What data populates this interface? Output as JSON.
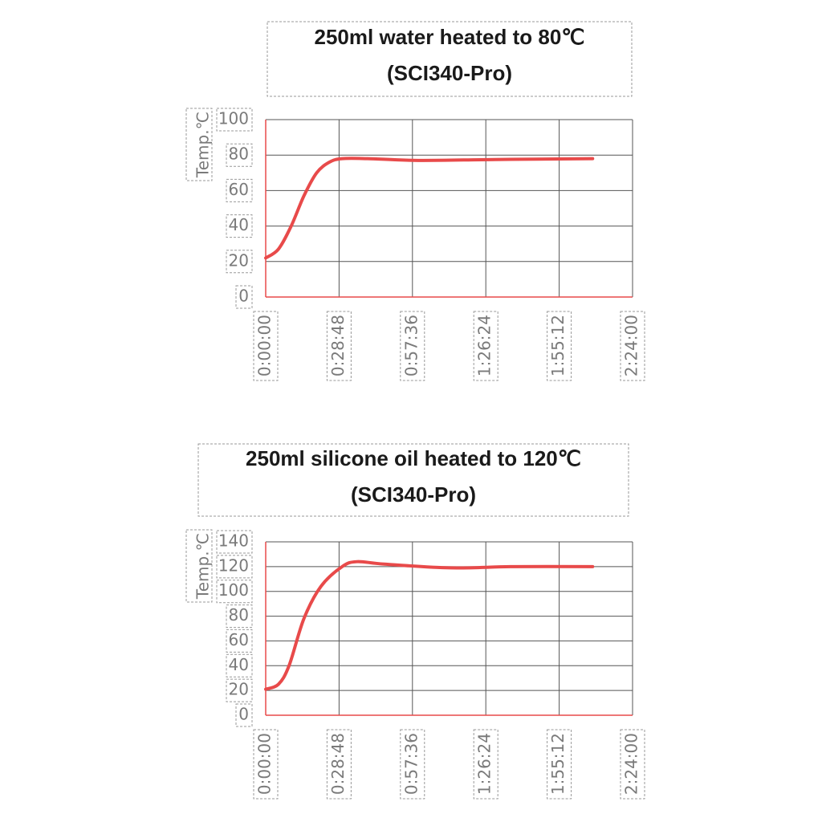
{
  "chart_data": [
    {
      "type": "line",
      "title": "250ml water heated to 80℃",
      "subtitle": "(SCI340-Pro)",
      "y_label": "Temp.℃",
      "x": [
        0,
        300,
        600,
        900,
        1200,
        1500,
        1800,
        2400,
        3600,
        5400,
        7700
      ],
      "series": [
        {
          "name": "Temp",
          "color": "#e84a4a",
          "values": [
            22,
            27,
            40,
            57,
            70,
            76,
            78,
            78,
            77,
            77.5,
            78
          ]
        }
      ],
      "xlim": [
        0,
        8640
      ],
      "xticks": [
        {
          "value": 0,
          "label": "0:00:00"
        },
        {
          "value": 1728,
          "label": "0:28:48"
        },
        {
          "value": 3456,
          "label": "0:57:36"
        },
        {
          "value": 5184,
          "label": "1:26:24"
        },
        {
          "value": 6912,
          "label": "1:55:12"
        },
        {
          "value": 8640,
          "label": "2:24:00"
        }
      ],
      "ylim": [
        0,
        100
      ],
      "yticks": [
        0,
        20,
        40,
        60,
        80,
        100
      ],
      "grid": true
    },
    {
      "type": "line",
      "title": "250ml silicone oil heated to 120℃",
      "subtitle": "(SCI340-Pro)",
      "y_label": "Temp.℃",
      "x": [
        0,
        300,
        550,
        900,
        1300,
        1800,
        2150,
        2800,
        4350,
        5850,
        7700
      ],
      "series": [
        {
          "name": "Temp",
          "color": "#e84a4a",
          "values": [
            21,
            25,
            40,
            78,
            104,
            120,
            124,
            122,
            119,
            120,
            120
          ]
        }
      ],
      "xlim": [
        0,
        8640
      ],
      "xticks": [
        {
          "value": 0,
          "label": "0:00:00"
        },
        {
          "value": 1728,
          "label": "0:28:48"
        },
        {
          "value": 3456,
          "label": "0:57:36"
        },
        {
          "value": 5184,
          "label": "1:26:24"
        },
        {
          "value": 6912,
          "label": "1:55:12"
        },
        {
          "value": 8640,
          "label": "2:24:00"
        }
      ],
      "ylim": [
        0,
        140
      ],
      "yticks": [
        0,
        20,
        40,
        60,
        80,
        100,
        120,
        140
      ],
      "grid": true
    }
  ]
}
